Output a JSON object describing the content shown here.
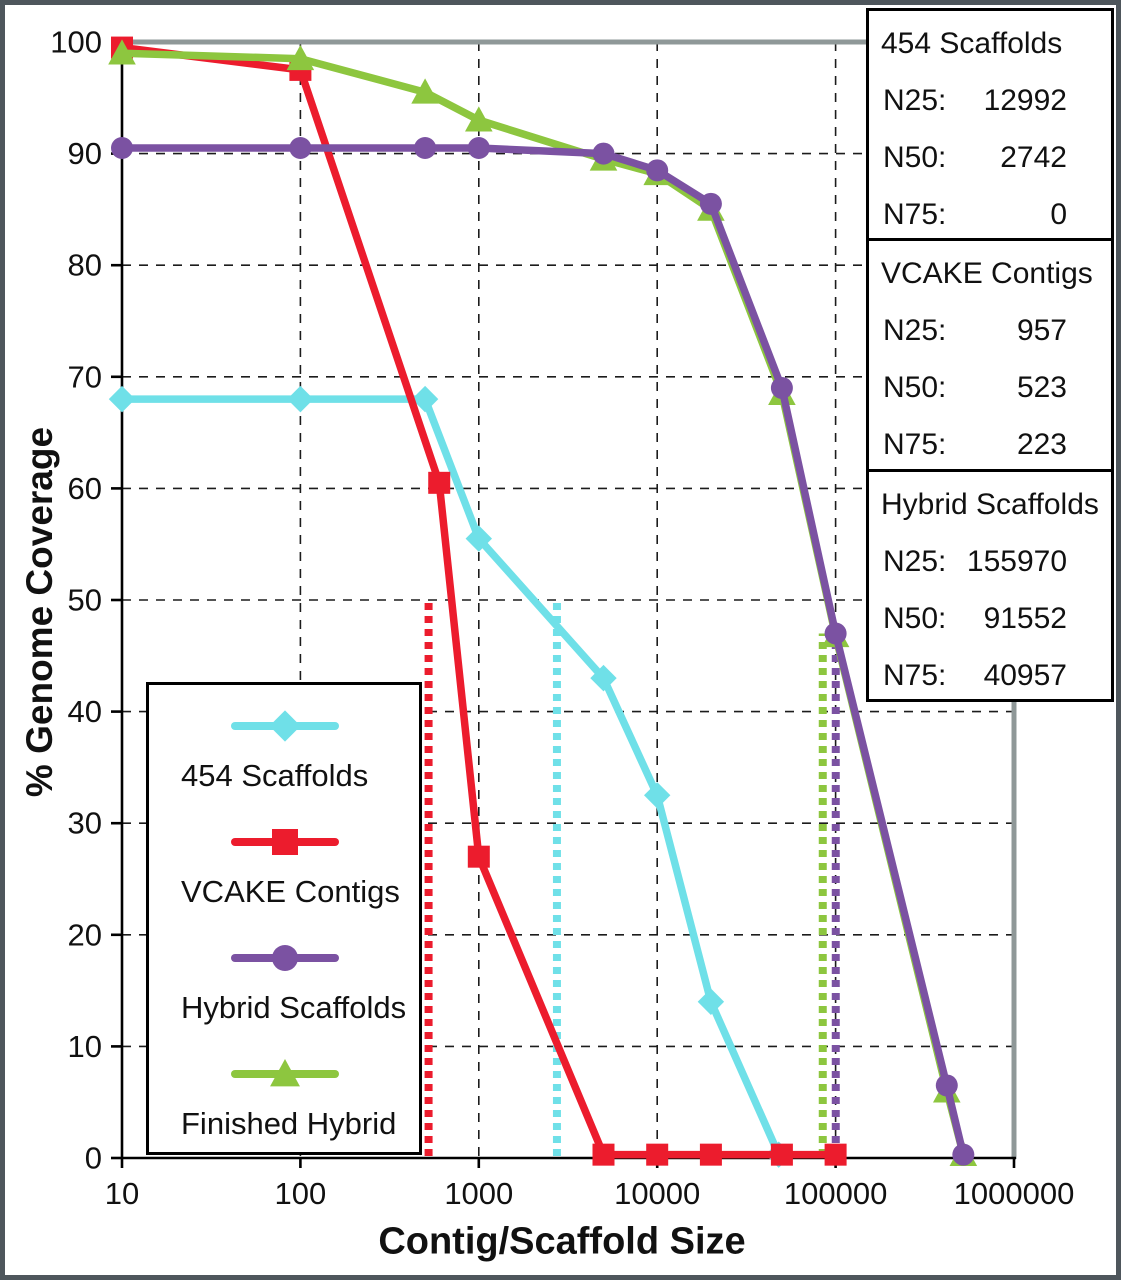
{
  "figure": {
    "xlabel": "Contig/Scaffold Size",
    "ylabel": "% Genome Coverage"
  },
  "chart_data": {
    "type": "line",
    "title": "",
    "xlabel": "Contig/Scaffold Size",
    "ylabel": "% Genome Coverage",
    "x_scale": "log",
    "xlim": [
      10,
      1000000
    ],
    "ylim": [
      0,
      100
    ],
    "grid": "dashed",
    "x_ticks": [
      "10",
      "100",
      "1000",
      "10000",
      "100000",
      "1000000"
    ],
    "y_ticks": [
      0,
      10,
      20,
      30,
      40,
      50,
      60,
      70,
      80,
      90,
      100
    ],
    "series": [
      {
        "name": "454 Scaffolds",
        "color": "#6fe0e8",
        "marker": "diamond",
        "points": [
          [
            10,
            68
          ],
          [
            100,
            68
          ],
          [
            500,
            68
          ],
          [
            1000,
            55.5
          ],
          [
            5000,
            43
          ],
          [
            10000,
            32.5
          ],
          [
            20000,
            14
          ],
          [
            48000,
            0.3
          ]
        ]
      },
      {
        "name": "VCAKE Contigs",
        "color": "#ec1c2d",
        "marker": "square",
        "points": [
          [
            10,
            99.5
          ],
          [
            100,
            97.5
          ],
          [
            600,
            60.5
          ],
          [
            1000,
            27
          ],
          [
            5000,
            0.3
          ],
          [
            10000,
            0.3
          ],
          [
            20000,
            0.3
          ],
          [
            50000,
            0.3
          ],
          [
            100000,
            0.3
          ]
        ]
      },
      {
        "name": "Finished Hybrid",
        "color": "#8dc63f",
        "marker": "triangle",
        "points": [
          [
            10,
            99
          ],
          [
            100,
            98.5
          ],
          [
            500,
            95.5
          ],
          [
            1000,
            93
          ],
          [
            5000,
            89.5
          ],
          [
            10000,
            88.2
          ],
          [
            20000,
            85
          ],
          [
            50000,
            68.5
          ],
          [
            100000,
            46.8
          ],
          [
            420000,
            6
          ],
          [
            520000,
            0.3
          ]
        ]
      },
      {
        "name": "Hybrid Scaffolds",
        "color": "#7b52a2",
        "marker": "circle",
        "points": [
          [
            10,
            90.5
          ],
          [
            100,
            90.5
          ],
          [
            500,
            90.5
          ],
          [
            1000,
            90.5
          ],
          [
            5000,
            90
          ],
          [
            10000,
            88.5
          ],
          [
            20000,
            85.5
          ],
          [
            50000,
            69
          ],
          [
            100000,
            47
          ],
          [
            420000,
            6.5
          ],
          [
            520000,
            0.3
          ]
        ]
      }
    ],
    "n50_guides": [
      {
        "series": "VCAKE Contigs",
        "color": "#ec1c2d",
        "x": 523,
        "y_top": 50
      },
      {
        "series": "454 Scaffolds",
        "color": "#6fe0e8",
        "x": 2742,
        "y_top": 50
      },
      {
        "series": "Finished Hybrid",
        "color": "#8dc63f",
        "x": 91552,
        "y_top": 47
      },
      {
        "series": "Hybrid Scaffolds",
        "color": "#7b52a2",
        "x": 91552,
        "y_top": 47
      }
    ]
  },
  "stats_panels": [
    {
      "title": "454 Scaffolds",
      "rows": [
        {
          "label": "N25:",
          "value": "12992"
        },
        {
          "label": "N50:",
          "value": "2742"
        },
        {
          "label": "N75:",
          "value": "0"
        }
      ]
    },
    {
      "title": "VCAKE Contigs",
      "rows": [
        {
          "label": "N25:",
          "value": "957"
        },
        {
          "label": "N50:",
          "value": "523"
        },
        {
          "label": "N75:",
          "value": "223"
        }
      ]
    },
    {
      "title": "Hybrid Scaffolds",
      "rows": [
        {
          "label": "N25:",
          "value": "155970"
        },
        {
          "label": "N50:",
          "value": "91552"
        },
        {
          "label": "N75:",
          "value": "40957"
        }
      ]
    }
  ],
  "legend": {
    "items": [
      {
        "label": "454 Scaffolds",
        "color": "#6fe0e8",
        "marker": "diamond"
      },
      {
        "label": "VCAKE Contigs",
        "color": "#ec1c2d",
        "marker": "square"
      },
      {
        "label": "Hybrid Scaffolds",
        "color": "#7b52a2",
        "marker": "circle"
      },
      {
        "label": "Finished Hybrid",
        "color": "#8dc63f",
        "marker": "triangle"
      }
    ]
  }
}
